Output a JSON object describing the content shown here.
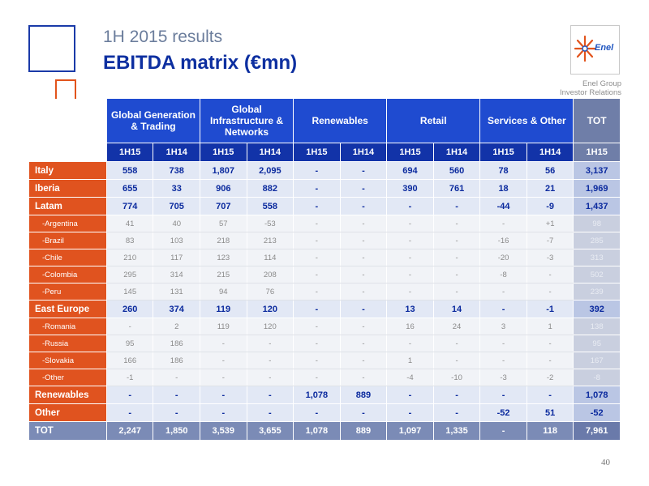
{
  "header": {
    "subtitle": "1H 2015 results",
    "title": "EBITDA matrix (€mn)"
  },
  "logo": {
    "text": "Enel"
  },
  "company": {
    "line1": "Enel Group",
    "line2": "Investor Relations"
  },
  "table": {
    "groups": [
      {
        "label": "Global Generation & Trading"
      },
      {
        "label": "Global Infrastructure & Networks"
      },
      {
        "label": "Renewables"
      },
      {
        "label": "Retail"
      },
      {
        "label": "Services & Other"
      }
    ],
    "tot_label": "TOT",
    "periods": [
      "1H15",
      "1H14",
      "1H15",
      "1H14",
      "1H15",
      "1H14",
      "1H15",
      "1H14",
      "1H15",
      "1H14",
      "1H15"
    ],
    "rows": [
      {
        "label": "Italy",
        "kind": "main",
        "values": [
          "558",
          "738",
          "1,807",
          "2,095",
          "-",
          "-",
          "694",
          "560",
          "78",
          "56"
        ],
        "tot": "3,137"
      },
      {
        "label": "Iberia",
        "kind": "main",
        "values": [
          "655",
          "33",
          "906",
          "882",
          "-",
          "-",
          "390",
          "761",
          "18",
          "21"
        ],
        "tot": "1,969"
      },
      {
        "label": "Latam",
        "kind": "main",
        "values": [
          "774",
          "705",
          "707",
          "558",
          "-",
          "-",
          "-",
          "-",
          "-44",
          "-9"
        ],
        "tot": "1,437"
      },
      {
        "label": "-Argentina",
        "kind": "sub",
        "values": [
          "41",
          "40",
          "57",
          "-53",
          "-",
          "-",
          "-",
          "-",
          "-",
          "+1"
        ],
        "tot": "98"
      },
      {
        "label": "-Brazil",
        "kind": "sub",
        "values": [
          "83",
          "103",
          "218",
          "213",
          "-",
          "-",
          "-",
          "-",
          "-16",
          "-7"
        ],
        "tot": "285"
      },
      {
        "label": "-Chile",
        "kind": "sub",
        "values": [
          "210",
          "117",
          "123",
          "114",
          "-",
          "-",
          "-",
          "-",
          "-20",
          "-3"
        ],
        "tot": "313"
      },
      {
        "label": "-Colombia",
        "kind": "sub",
        "values": [
          "295",
          "314",
          "215",
          "208",
          "-",
          "-",
          "-",
          "-",
          "-8",
          "-"
        ],
        "tot": "502"
      },
      {
        "label": "-Peru",
        "kind": "sub",
        "values": [
          "145",
          "131",
          "94",
          "76",
          "-",
          "-",
          "-",
          "-",
          "-",
          "-"
        ],
        "tot": "239"
      },
      {
        "label": "East Europe",
        "kind": "main",
        "values": [
          "260",
          "374",
          "119",
          "120",
          "-",
          "-",
          "13",
          "14",
          "-",
          "-1"
        ],
        "tot": "392"
      },
      {
        "label": "-Romania",
        "kind": "sub",
        "values": [
          "-",
          "2",
          "119",
          "120",
          "-",
          "-",
          "16",
          "24",
          "3",
          "1"
        ],
        "tot": "138"
      },
      {
        "label": "-Russia",
        "kind": "sub",
        "values": [
          "95",
          "186",
          "-",
          "-",
          "-",
          "-",
          "-",
          "-",
          "-",
          "-"
        ],
        "tot": "95"
      },
      {
        "label": "-Slovakia",
        "kind": "sub",
        "values": [
          "166",
          "186",
          "-",
          "-",
          "-",
          "-",
          "1",
          "-",
          "-",
          "-"
        ],
        "tot": "167"
      },
      {
        "label": "-Other",
        "kind": "sub",
        "values": [
          "-1",
          "-",
          "-",
          "-",
          "-",
          "-",
          "-4",
          "-10",
          "-3",
          "-2"
        ],
        "tot": "-8"
      },
      {
        "label": "Renewables",
        "kind": "main",
        "values": [
          "-",
          "-",
          "-",
          "-",
          "1,078",
          "889",
          "-",
          "-",
          "-",
          "-"
        ],
        "tot": "1,078"
      },
      {
        "label": "Other",
        "kind": "main",
        "values": [
          "-",
          "-",
          "-",
          "-",
          "-",
          "-",
          "-",
          "-",
          "-52",
          "51"
        ],
        "tot": "-52"
      },
      {
        "label": "TOT",
        "kind": "total",
        "values": [
          "2,247",
          "1,850",
          "3,539",
          "3,655",
          "1,078",
          "889",
          "1,097",
          "1,335",
          "-",
          "118"
        ],
        "tot": "7,961"
      }
    ]
  },
  "page_number": "40"
}
